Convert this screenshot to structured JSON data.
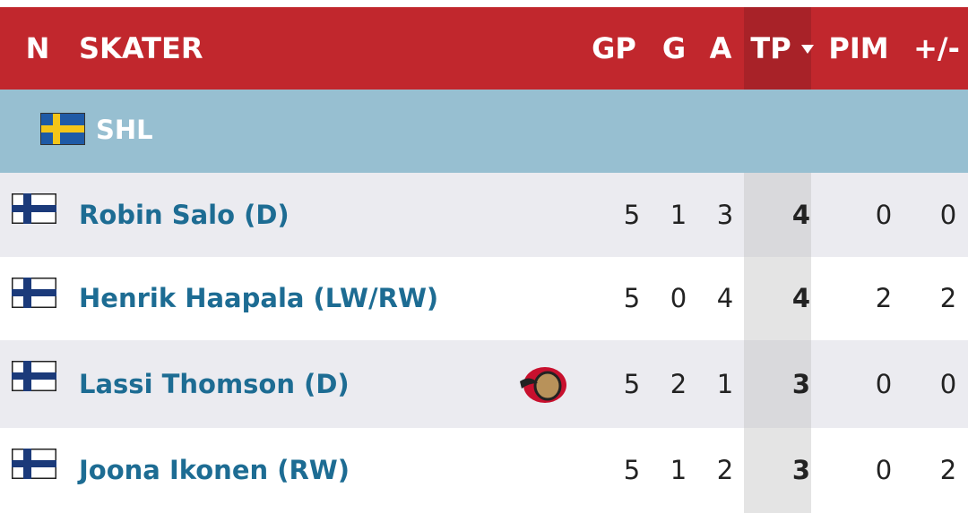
{
  "header": {
    "columns": [
      "N",
      "SKATER",
      "GP",
      "G",
      "A",
      "TP",
      "PIM",
      "+/-"
    ]
  },
  "section": {
    "league": "SHL"
  },
  "table": {
    "rows": [
      {
        "name": "Robin Salo (D)",
        "gp": 5,
        "g": 1,
        "a": 3,
        "tp": 4,
        "pim": 0,
        "plus_minus": 0
      },
      {
        "name": "Henrik Haapala (LW/RW)",
        "gp": 5,
        "g": 0,
        "a": 4,
        "tp": 4,
        "pim": 2,
        "plus_minus": 2
      },
      {
        "name": "Lassi Thomson (D)",
        "gp": 5,
        "g": 2,
        "a": 1,
        "tp": 3,
        "pim": 0,
        "plus_minus": 0
      },
      {
        "name": "Joona Ikonen (RW)",
        "gp": 5,
        "g": 1,
        "a": 2,
        "tp": 3,
        "pim": 0,
        "plus_minus": 2
      }
    ]
  }
}
